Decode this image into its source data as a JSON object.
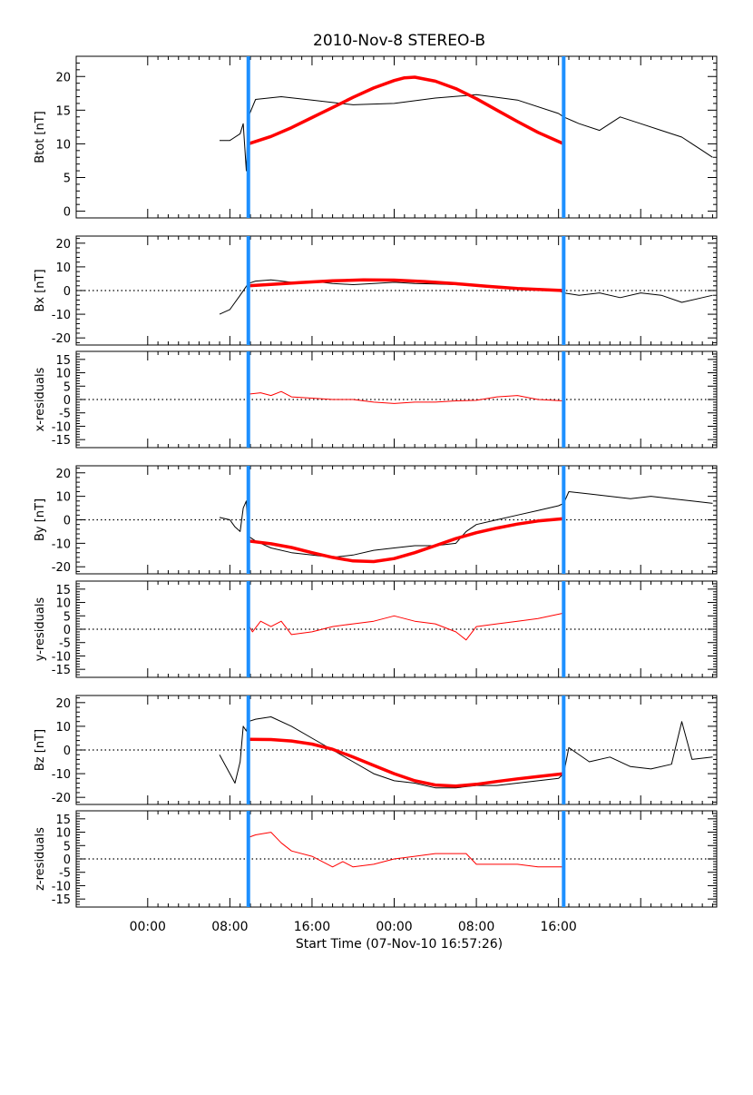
{
  "title": "2010-Nov-8 STEREO-B",
  "xlabel": "Start Time (07-Nov-10 16:57:26)",
  "x_tick_labels": [
    "00:00",
    "08:00",
    "16:00",
    "00:00",
    "08:00",
    "16:00"
  ],
  "colors": {
    "boundary": "#1e90ff",
    "model": "#ff0000",
    "data": "#000000",
    "residual": "#ff0000"
  },
  "chart_data": [
    {
      "type": "line",
      "ylabel": "Btot [nT]",
      "ylim": [
        -1,
        23
      ],
      "y_ticks": [
        0,
        5,
        10,
        15,
        20
      ],
      "zero_line": false,
      "x_unit": "hours after start time",
      "boundaries": [
        9.8,
        40.5
      ],
      "series": [
        {
          "style": "data",
          "x": [
            7.0,
            8.0,
            9.0,
            9.3,
            9.6,
            9.8,
            10.5,
            13,
            16,
            20,
            24,
            28,
            32,
            36,
            40,
            40.5,
            42,
            44,
            46,
            48,
            50,
            52,
            54,
            55
          ],
          "y": [
            10.5,
            10.5,
            11.5,
            13,
            6,
            14,
            16.6,
            17,
            16.5,
            15.8,
            16,
            16.8,
            17.3,
            16.5,
            14.5,
            14,
            13,
            12,
            14,
            13,
            12,
            11,
            9,
            8
          ]
        },
        {
          "style": "model",
          "x": [
            9.8,
            12,
            14,
            16,
            18,
            20,
            22,
            24,
            25,
            26,
            28,
            30,
            32,
            34,
            36,
            38,
            40.5
          ],
          "y": [
            10,
            11.1,
            12.4,
            13.9,
            15.4,
            16.9,
            18.3,
            19.4,
            19.8,
            19.9,
            19.3,
            18.2,
            16.7,
            15,
            13.3,
            11.7,
            10
          ]
        }
      ]
    },
    {
      "type": "line",
      "ylabel": "Bx [nT]",
      "ylim": [
        -23,
        23
      ],
      "y_ticks": [
        -20,
        -10,
        0,
        10,
        20
      ],
      "zero_line": true,
      "x_unit": "hours after start time",
      "boundaries": [
        9.8,
        40.5
      ],
      "series": [
        {
          "style": "data",
          "x": [
            7.0,
            8,
            9,
            9.8,
            10.5,
            12,
            14,
            16,
            18,
            20,
            22,
            24,
            26,
            28,
            30,
            32,
            34,
            36,
            38,
            40,
            40.5,
            42,
            44,
            46,
            48,
            50,
            52,
            54,
            55
          ],
          "y": [
            -10,
            -8,
            -2,
            3,
            4,
            4.5,
            3.5,
            4,
            3,
            2.5,
            3,
            3.5,
            3,
            2.8,
            2.5,
            2,
            1.5,
            1,
            0.5,
            0,
            -1,
            -2,
            -1,
            -3,
            -1,
            -2,
            -5,
            -3,
            -2
          ]
        },
        {
          "style": "model",
          "x": [
            9.8,
            12,
            15,
            18,
            21,
            24,
            27,
            30,
            33,
            36,
            40.5
          ],
          "y": [
            2,
            2.6,
            3.4,
            4.1,
            4.5,
            4.4,
            3.8,
            2.9,
            1.8,
            0.9,
            0
          ]
        }
      ]
    },
    {
      "type": "line",
      "ylabel": "x-residuals",
      "ylim": [
        -18,
        18
      ],
      "y_ticks": [
        -15,
        -10,
        -5,
        0,
        5,
        10,
        15
      ],
      "zero_line": true,
      "x_unit": "hours after start time",
      "boundaries": [
        9.8,
        40.5
      ],
      "series": [
        {
          "style": "residual",
          "x": [
            9.8,
            11,
            12,
            13,
            14,
            16,
            18,
            20,
            22,
            24,
            26,
            28,
            30,
            32,
            34,
            36,
            38,
            40.5
          ],
          "y": [
            2,
            2.5,
            1.5,
            3,
            1,
            0.5,
            0,
            0,
            -1,
            -1.5,
            -1,
            -1,
            -0.5,
            -0.3,
            1,
            1.5,
            0,
            -0.5
          ]
        }
      ]
    },
    {
      "type": "line",
      "ylabel": "By [nT]",
      "ylim": [
        -23,
        23
      ],
      "y_ticks": [
        -20,
        -10,
        0,
        10,
        20
      ],
      "zero_line": true,
      "x_unit": "hours after start time",
      "boundaries": [
        9.8,
        40.5
      ],
      "series": [
        {
          "style": "data",
          "x": [
            7.0,
            8,
            8.5,
            9,
            9.3,
            9.6,
            9.8,
            10.5,
            12,
            14,
            16,
            18,
            20,
            22,
            24,
            26,
            28,
            30,
            31,
            32,
            34,
            36,
            38,
            40,
            40.5,
            41,
            43,
            45,
            47,
            49,
            51,
            53,
            55
          ],
          "y": [
            1,
            0,
            -3,
            -5,
            5,
            8,
            -7,
            -9,
            -12,
            -14,
            -15,
            -16,
            -15,
            -13,
            -12,
            -11,
            -11,
            -10,
            -5,
            -2,
            0,
            2,
            4,
            6,
            7,
            12,
            11,
            10,
            9,
            10,
            9,
            8,
            7
          ]
        },
        {
          "style": "model",
          "x": [
            9.8,
            12,
            14,
            16,
            18,
            20,
            22,
            24,
            26,
            28,
            30,
            32,
            34,
            36,
            38,
            40.5
          ],
          "y": [
            -9,
            -10.2,
            -11.8,
            -14,
            -16,
            -17.5,
            -17.8,
            -16.5,
            -14,
            -11,
            -8,
            -5.5,
            -3.5,
            -1.8,
            -0.5,
            0.5
          ]
        }
      ]
    },
    {
      "type": "line",
      "ylabel": "y-residuals",
      "ylim": [
        -18,
        18
      ],
      "y_ticks": [
        -15,
        -10,
        -5,
        0,
        5,
        10,
        15
      ],
      "zero_line": true,
      "x_unit": "hours after start time",
      "boundaries": [
        9.8,
        40.5
      ],
      "series": [
        {
          "style": "residual",
          "x": [
            9.8,
            9.9,
            10.2,
            11,
            12,
            13,
            14,
            16,
            18,
            20,
            22,
            24,
            26,
            28,
            30,
            31,
            32,
            34,
            36,
            38,
            40.5
          ],
          "y": [
            16,
            1,
            -1,
            3,
            1,
            3,
            -2,
            -1,
            1,
            2,
            3,
            5,
            3,
            2,
            -1,
            -4,
            1,
            2,
            3,
            4,
            6
          ]
        }
      ]
    },
    {
      "type": "line",
      "ylabel": "Bz [nT]",
      "ylim": [
        -23,
        23
      ],
      "y_ticks": [
        -20,
        -10,
        0,
        10,
        20
      ],
      "zero_line": true,
      "x_unit": "hours after start time",
      "boundaries": [
        9.8,
        40.5
      ],
      "series": [
        {
          "style": "data",
          "x": [
            7.0,
            8,
            8.5,
            9,
            9.3,
            9.6,
            9.8,
            10.5,
            12,
            14,
            16,
            18,
            20,
            22,
            24,
            26,
            28,
            30,
            32,
            34,
            36,
            38,
            40,
            40.5,
            41,
            43,
            45,
            47,
            49,
            51,
            52,
            53,
            55
          ],
          "y": [
            -2,
            -10,
            -14,
            -5,
            10,
            8,
            12,
            13,
            14,
            10,
            5,
            0,
            -5,
            -10,
            -13,
            -14,
            -16,
            -16,
            -15,
            -15,
            -14,
            -13,
            -12,
            -10,
            1,
            -5,
            -3,
            -7,
            -8,
            -6,
            12,
            -4,
            -3
          ]
        },
        {
          "style": "model",
          "x": [
            9.8,
            12,
            14,
            16,
            18,
            20,
            22,
            24,
            26,
            28,
            30,
            32,
            34,
            36,
            38,
            40.5
          ],
          "y": [
            4.5,
            4.4,
            3.8,
            2.5,
            0.3,
            -3,
            -6.5,
            -10,
            -13,
            -14.8,
            -15.2,
            -14.5,
            -13.3,
            -12.2,
            -11.2,
            -10
          ]
        }
      ]
    },
    {
      "type": "line",
      "ylabel": "z-residuals",
      "ylim": [
        -18,
        18
      ],
      "y_ticks": [
        -15,
        -10,
        -5,
        0,
        5,
        10,
        15
      ],
      "zero_line": true,
      "x_unit": "hours after start time",
      "boundaries": [
        9.8,
        40.5
      ],
      "series": [
        {
          "style": "residual",
          "x": [
            9.8,
            10.5,
            12,
            13,
            14,
            16,
            18,
            19,
            20,
            22,
            24,
            26,
            28,
            30,
            31,
            32,
            34,
            36,
            38,
            40.5
          ],
          "y": [
            8,
            9,
            10,
            6,
            3,
            1,
            -3,
            -1,
            -3,
            -2,
            0,
            1,
            2,
            2,
            2,
            -2,
            -2,
            -2,
            -3,
            -3
          ]
        }
      ]
    }
  ]
}
